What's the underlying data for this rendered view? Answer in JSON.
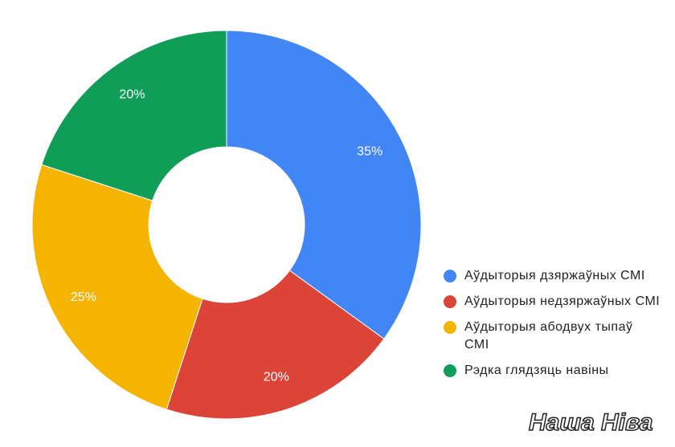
{
  "chart_data": {
    "type": "pie",
    "categories": [
      "Аўдыторыя дзяржаўных СМІ",
      "Аўдыторыя недзяржаўных СМІ",
      "Аўдыторыя абодвух тыпаў СМІ",
      "Рэдка глядзяць навіны"
    ],
    "values": [
      35,
      20,
      25,
      20
    ],
    "value_labels": [
      "35%",
      "20%",
      "25%",
      "20%"
    ],
    "colors": [
      "#4285f4",
      "#db4437",
      "#f4b400",
      "#0f9d58"
    ],
    "legend": "right"
  },
  "watermark": "Наша Ніва"
}
